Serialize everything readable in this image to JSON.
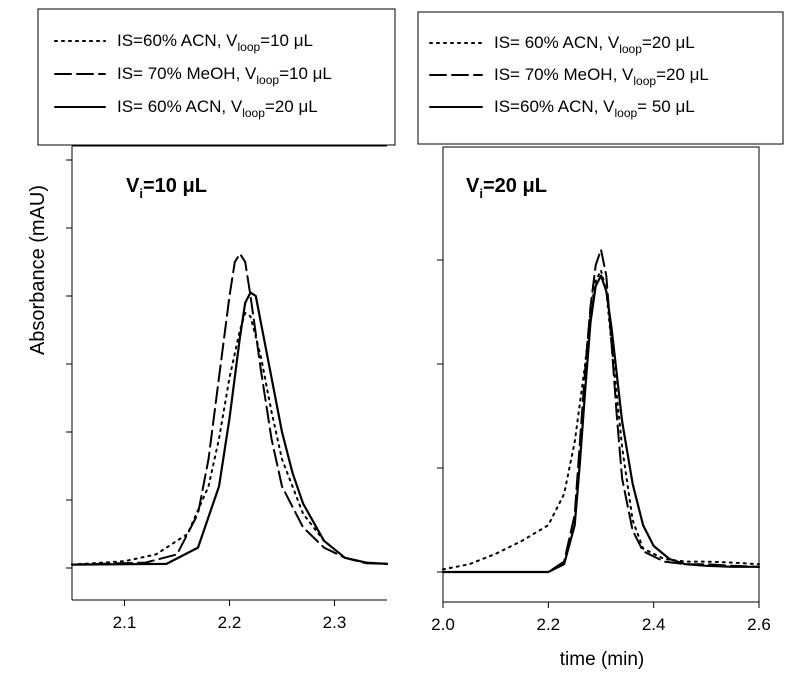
{
  "ylabel": "Absorbance (mAU)",
  "xlabel": "time (min)",
  "panels": [
    {
      "annotation": {
        "main": "V",
        "sub": "i",
        "rest": "=10 μL"
      },
      "legend": [
        {
          "style": "dotted",
          "pre": "IS=60% ACN, V",
          "sub": "loop",
          "post": "=10 μL"
        },
        {
          "style": "dashed",
          "pre": "IS= 70% MeOH, V",
          "sub": "loop",
          "post": "=10 μL"
        },
        {
          "style": "solid",
          "pre": "IS= 60% ACN, V",
          "sub": "loop",
          "post": "=20 μL"
        }
      ]
    },
    {
      "annotation": {
        "main": "V",
        "sub": "i",
        "rest": "=20 μL"
      },
      "legend": [
        {
          "style": "dotted",
          "pre": "IS= 60% ACN, V",
          "sub": "loop",
          "post": "=20 μL"
        },
        {
          "style": "dashed",
          "pre": "IS= 70% MeOH, V",
          "sub": "loop",
          "post": "=20 μL"
        },
        {
          "style": "solid",
          "pre": "IS=60% ACN, V",
          "sub": "loop",
          "post": "= 50 μL"
        }
      ]
    }
  ],
  "chart_data": [
    {
      "type": "line",
      "title": "",
      "xlabel": "",
      "ylabel": "Absorbance (mAU)",
      "xlim": [
        2.05,
        2.35
      ],
      "ylim": [
        0,
        7
      ],
      "xticks": [
        2.1,
        2.2,
        2.3
      ],
      "xtick_labels": [
        "2.1",
        "2.2",
        "2.3"
      ],
      "yticks": [
        0,
        1,
        2,
        3,
        4,
        5,
        6
      ],
      "ytick_labels": [
        "",
        "",
        "",
        "",
        "",
        "",
        ""
      ],
      "series": [
        {
          "name": "IS=60% ACN, Vloop=10 μL",
          "style": "dotted",
          "x": [
            2.05,
            2.1,
            2.13,
            2.16,
            2.18,
            2.19,
            2.2,
            2.21,
            2.215,
            2.22,
            2.23,
            2.24,
            2.25,
            2.27,
            2.29,
            2.31,
            2.33,
            2.35
          ],
          "y": [
            0.05,
            0.1,
            0.2,
            0.5,
            1.2,
            1.9,
            2.8,
            3.5,
            3.75,
            3.7,
            3.1,
            2.3,
            1.6,
            0.8,
            0.4,
            0.15,
            0.08,
            0.06
          ]
        },
        {
          "name": "IS= 70% MeOH, Vloop=10 μL",
          "style": "dashed",
          "x": [
            2.05,
            2.12,
            2.15,
            2.17,
            2.18,
            2.19,
            2.2,
            2.205,
            2.21,
            2.215,
            2.22,
            2.23,
            2.24,
            2.25,
            2.27,
            2.29,
            2.31,
            2.33,
            2.35
          ],
          "y": [
            0.05,
            0.08,
            0.2,
            0.8,
            1.6,
            2.8,
            4.0,
            4.5,
            4.62,
            4.5,
            4.0,
            2.9,
            1.9,
            1.2,
            0.6,
            0.3,
            0.15,
            0.07,
            0.06
          ]
        },
        {
          "name": "IS= 60% ACN, Vloop=20 μL",
          "style": "solid",
          "x": [
            2.05,
            2.14,
            2.17,
            2.19,
            2.2,
            2.21,
            2.215,
            2.22,
            2.225,
            2.23,
            2.24,
            2.25,
            2.26,
            2.27,
            2.29,
            2.31,
            2.33,
            2.35
          ],
          "y": [
            0.05,
            0.06,
            0.3,
            1.2,
            2.2,
            3.4,
            3.9,
            4.05,
            4.0,
            3.6,
            2.8,
            2.0,
            1.4,
            0.95,
            0.4,
            0.15,
            0.08,
            0.06
          ]
        }
      ]
    },
    {
      "type": "line",
      "title": "",
      "xlabel": "time (min)",
      "ylabel": "",
      "xlim": [
        2.0,
        2.6
      ],
      "ylim": [
        0,
        6.5
      ],
      "xticks": [
        2.0,
        2.2,
        2.4,
        2.6
      ],
      "xtick_labels": [
        "2.0",
        "2.2",
        "2.4",
        "2.6"
      ],
      "yticks": [
        0,
        2,
        4,
        6
      ],
      "ytick_labels": [
        "",
        "",
        "",
        ""
      ],
      "series": [
        {
          "name": "IS= 60% ACN, Vloop=20 μL",
          "style": "dotted",
          "x": [
            2.0,
            2.05,
            2.1,
            2.15,
            2.2,
            2.23,
            2.25,
            2.27,
            2.28,
            2.29,
            2.3,
            2.31,
            2.32,
            2.34,
            2.36,
            2.38,
            2.42,
            2.46,
            2.5,
            2.55,
            2.6
          ],
          "y": [
            0.05,
            0.15,
            0.35,
            0.6,
            0.9,
            1.5,
            2.5,
            4.0,
            5.0,
            5.6,
            5.8,
            5.4,
            4.4,
            2.4,
            1.0,
            0.45,
            0.25,
            0.2,
            0.2,
            0.18,
            0.15
          ]
        },
        {
          "name": "IS= 70% MeOH, Vloop=20 μL",
          "style": "dashed",
          "x": [
            2.0,
            2.2,
            2.23,
            2.25,
            2.26,
            2.27,
            2.28,
            2.29,
            2.3,
            2.31,
            2.32,
            2.33,
            2.34,
            2.36,
            2.38,
            2.42,
            2.46,
            2.5,
            2.55,
            2.6
          ],
          "y": [
            0.0,
            0.0,
            0.2,
            1.1,
            2.5,
            3.9,
            5.1,
            5.9,
            6.2,
            5.7,
            4.4,
            3.0,
            1.8,
            0.8,
            0.4,
            0.2,
            0.15,
            0.15,
            0.12,
            0.1
          ]
        },
        {
          "name": "IS=60% ACN, Vloop= 50 μL",
          "style": "solid",
          "x": [
            2.0,
            2.2,
            2.23,
            2.25,
            2.26,
            2.27,
            2.28,
            2.29,
            2.3,
            2.31,
            2.32,
            2.33,
            2.34,
            2.36,
            2.38,
            2.4,
            2.43,
            2.46,
            2.5,
            2.55,
            2.6
          ],
          "y": [
            0.0,
            0.0,
            0.15,
            0.9,
            2.1,
            3.5,
            4.8,
            5.5,
            5.7,
            5.4,
            4.7,
            3.8,
            2.9,
            1.7,
            0.9,
            0.5,
            0.25,
            0.15,
            0.12,
            0.1,
            0.1
          ]
        }
      ]
    }
  ]
}
